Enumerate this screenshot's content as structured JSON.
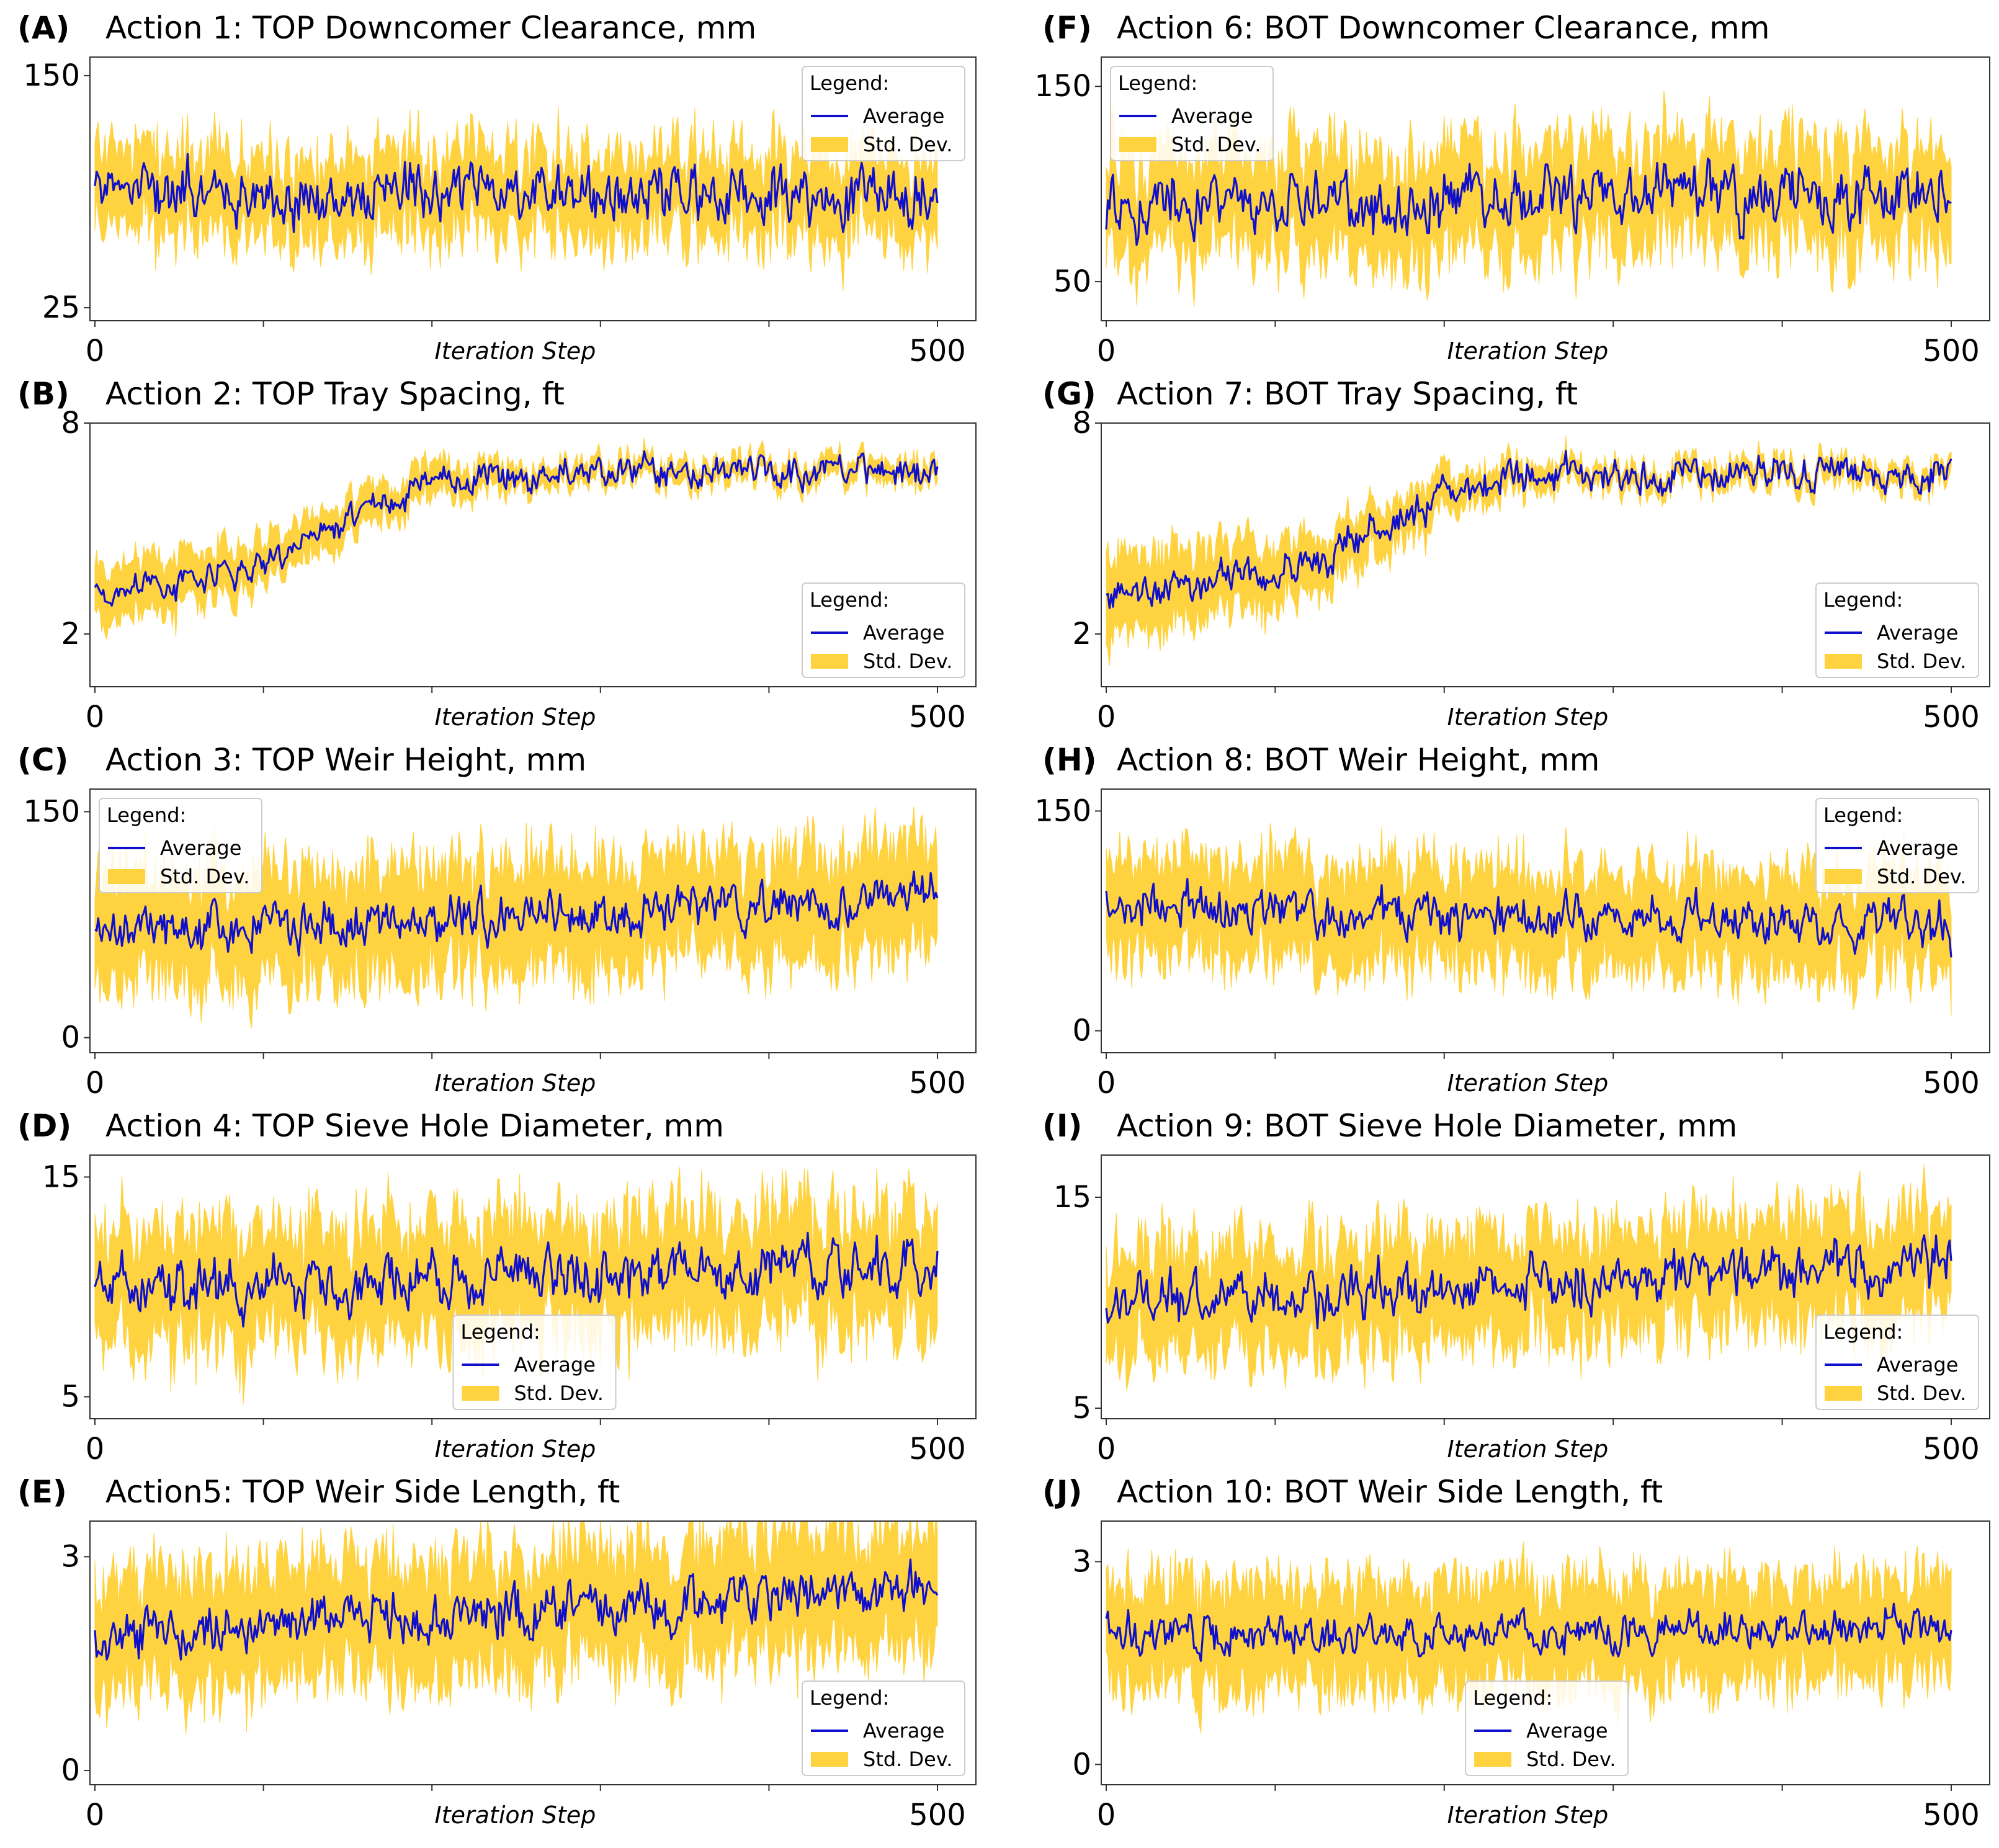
{
  "figure": {
    "colors": {
      "average": "#1010cc",
      "std_dev": "#ffd23f",
      "axes": "#333333"
    }
  },
  "chart_data": [
    {
      "type": "line",
      "panel": "(A)",
      "title": "Action 1: TOP Downcomer Clearance, mm",
      "xlabel": "Iteration Step",
      "xlim": [
        0,
        500
      ],
      "ylim": [
        18,
        160
      ],
      "xticks": [
        "0",
        "500"
      ],
      "yticks": [
        150,
        25
      ],
      "series": [
        {
          "name": "Average",
          "start": 90,
          "end": 83,
          "band": 22,
          "noise": 11,
          "seed": 11
        }
      ],
      "legend": {
        "title": "Legend:",
        "entries": [
          "Average",
          "Std. Dev."
        ],
        "position": "top-right"
      }
    },
    {
      "type": "line",
      "panel": "(B)",
      "title": "Action 2: TOP Tray Spacing, ft",
      "xlabel": "Iteration Step",
      "xlim": [
        0,
        500
      ],
      "ylim": [
        0.5,
        8
      ],
      "xticks": [
        "0",
        "500"
      ],
      "yticks": [
        8,
        2
      ],
      "series": [
        {
          "name": "Average",
          "start": 3.3,
          "end": 6.6,
          "mid": 140,
          "rise": 30,
          "band": 0.85,
          "band_end": 0.3,
          "noise": 0.3,
          "seed": 22
        }
      ],
      "legend": {
        "title": "Legend:",
        "entries": [
          "Average",
          "Std. Dev."
        ],
        "position": "bottom-right"
      }
    },
    {
      "type": "line",
      "panel": "(C)",
      "title": "Action 3: TOP Weir Height, mm",
      "xlabel": "Iteration Step",
      "xlim": [
        0,
        500
      ],
      "ylim": [
        -10,
        165
      ],
      "xticks": [
        "0",
        "500"
      ],
      "yticks": [
        150,
        0
      ],
      "series": [
        {
          "name": "Average",
          "start": 68,
          "end": 92,
          "band": 35,
          "noise": 11,
          "seed": 33
        }
      ],
      "legend": {
        "title": "Legend:",
        "entries": [
          "Average",
          "Std. Dev."
        ],
        "position": "top-left"
      }
    },
    {
      "type": "line",
      "panel": "(D)",
      "title": "Action 4: TOP Sieve Hole Diameter, mm",
      "xlabel": "Iteration Step",
      "xlim": [
        0,
        500
      ],
      "ylim": [
        4,
        16
      ],
      "xticks": [
        "0",
        "500"
      ],
      "yticks": [
        15,
        5
      ],
      "series": [
        {
          "name": "Average",
          "start": 9.7,
          "end": 11.0,
          "band": 2.6,
          "noise": 0.9,
          "seed": 44
        }
      ],
      "legend": {
        "title": "Legend:",
        "entries": [
          "Average",
          "Std. Dev."
        ],
        "position": "lower-center"
      }
    },
    {
      "type": "line",
      "panel": "(E)",
      "title": "Action5: TOP Weir Side Length, ft",
      "xlabel": "Iteration Step",
      "xlim": [
        0,
        500
      ],
      "ylim": [
        -0.2,
        3.5
      ],
      "xticks": [
        "0",
        "500"
      ],
      "yticks": [
        3,
        0
      ],
      "series": [
        {
          "name": "Average",
          "start": 1.9,
          "end": 2.55,
          "band": 0.8,
          "noise": 0.25,
          "seed": 55
        }
      ],
      "legend": {
        "title": "Legend:",
        "entries": [
          "Average",
          "Std. Dev."
        ],
        "position": "bottom-right"
      }
    },
    {
      "type": "line",
      "panel": "(F)",
      "title": "Action 6: BOT Downcomer Clearance, mm",
      "xlabel": "Iteration Step",
      "xlim": [
        0,
        500
      ],
      "ylim": [
        30,
        165
      ],
      "xticks": [
        "0",
        "500"
      ],
      "yticks": [
        150,
        50
      ],
      "series": [
        {
          "name": "Average",
          "start": 90,
          "end": 96,
          "band": 26,
          "noise": 11,
          "seed": 66
        }
      ],
      "legend": {
        "title": "Legend:",
        "entries": [
          "Average",
          "Std. Dev."
        ],
        "position": "top-left"
      }
    },
    {
      "type": "line",
      "panel": "(G)",
      "title": "Action 7: BOT Tray Spacing, ft",
      "xlabel": "Iteration Step",
      "xlim": [
        0,
        500
      ],
      "ylim": [
        0.5,
        8
      ],
      "xticks": [
        "0",
        "500"
      ],
      "yticks": [
        8,
        2
      ],
      "series": [
        {
          "name": "Average",
          "start": 3.3,
          "end": 6.6,
          "mid": 160,
          "rise": 32,
          "band": 1.2,
          "band_end": 0.3,
          "noise": 0.35,
          "seed": 77
        }
      ],
      "legend": {
        "title": "Legend:",
        "entries": [
          "Average",
          "Std. Dev."
        ],
        "position": "bottom-right"
      }
    },
    {
      "type": "line",
      "panel": "(H)",
      "title": "Action 8: BOT Weir Height, mm",
      "xlabel": "Iteration Step",
      "xlim": [
        0,
        500
      ],
      "ylim": [
        -15,
        165
      ],
      "xticks": [
        "0",
        "500"
      ],
      "yticks": [
        150,
        0
      ],
      "series": [
        {
          "name": "Average",
          "start": 86,
          "end": 72,
          "band": 33,
          "noise": 11,
          "seed": 88
        }
      ],
      "legend": {
        "title": "Legend:",
        "entries": [
          "Average",
          "Std. Dev."
        ],
        "position": "top-right"
      }
    },
    {
      "type": "line",
      "panel": "(I)",
      "title": "Action 9: BOT Sieve Hole Diameter, mm",
      "xlabel": "Iteration Step",
      "xlim": [
        0,
        500
      ],
      "ylim": [
        4.5,
        17
      ],
      "xticks": [
        "0",
        "500"
      ],
      "yticks": [
        15,
        5
      ],
      "series": [
        {
          "name": "Average",
          "start": 9.9,
          "end": 11.8,
          "band": 2.5,
          "noise": 0.9,
          "seed": 99
        }
      ],
      "legend": {
        "title": "Legend:",
        "entries": [
          "Average",
          "Std. Dev."
        ],
        "position": "bottom-right"
      }
    },
    {
      "type": "line",
      "panel": "(J)",
      "title": "Action 10: BOT Weir Side Length, ft",
      "xlabel": "Iteration Step",
      "xlim": [
        0,
        500
      ],
      "ylim": [
        -0.3,
        3.6
      ],
      "xticks": [
        "0",
        "500"
      ],
      "yticks": [
        3,
        0
      ],
      "series": [
        {
          "name": "Average",
          "start": 1.9,
          "end": 2.05,
          "band": 0.75,
          "noise": 0.2,
          "seed": 111
        }
      ],
      "legend": {
        "title": "Legend:",
        "entries": [
          "Average",
          "Std. Dev."
        ],
        "position": "lower-center"
      }
    }
  ]
}
